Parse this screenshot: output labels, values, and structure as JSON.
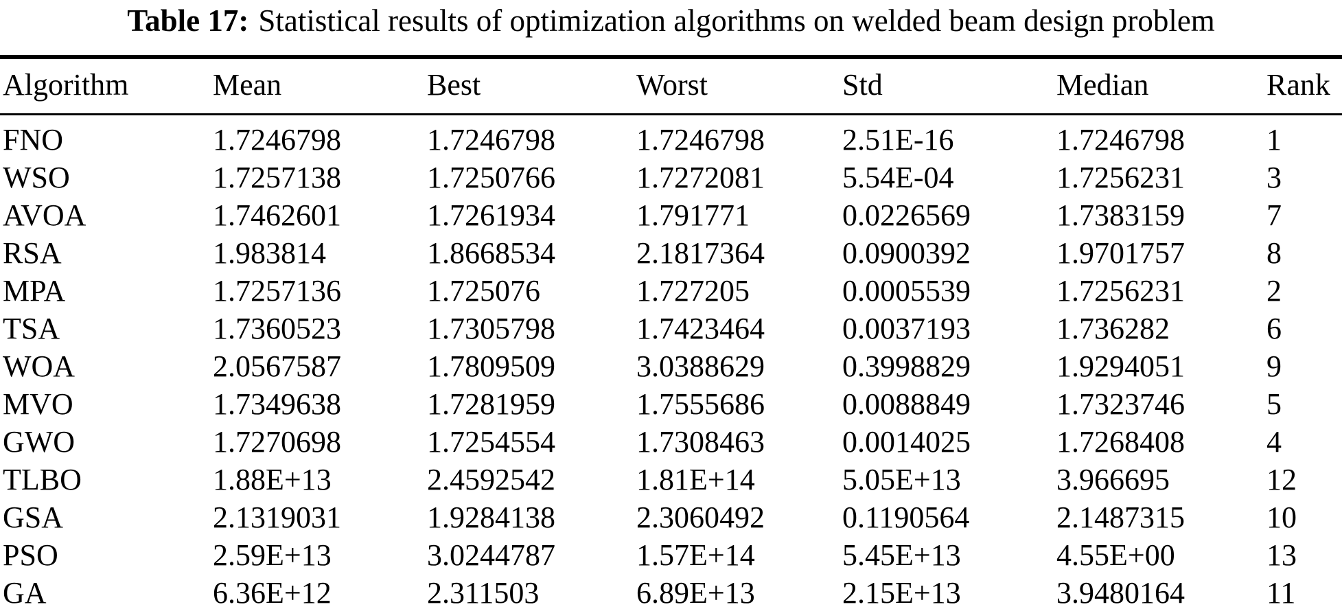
{
  "title": {
    "label": "Table 17:",
    "text": "Statistical results of optimization algorithms on welded beam design problem"
  },
  "table": {
    "columns": [
      {
        "key": "algorithm",
        "label": "Algorithm"
      },
      {
        "key": "mean",
        "label": "Mean"
      },
      {
        "key": "best",
        "label": "Best"
      },
      {
        "key": "worst",
        "label": "Worst"
      },
      {
        "key": "std",
        "label": "Std"
      },
      {
        "key": "median",
        "label": "Median"
      },
      {
        "key": "rank",
        "label": "Rank"
      }
    ],
    "rows": [
      {
        "algorithm": "FNO",
        "mean": "1.7246798",
        "best": "1.7246798",
        "worst": "1.7246798",
        "std": "2.51E-16",
        "median": "1.7246798",
        "rank": "1"
      },
      {
        "algorithm": "WSO",
        "mean": "1.7257138",
        "best": "1.7250766",
        "worst": "1.7272081",
        "std": "5.54E-04",
        "median": "1.7256231",
        "rank": "3"
      },
      {
        "algorithm": "AVOA",
        "mean": "1.7462601",
        "best": "1.7261934",
        "worst": "1.791771",
        "std": "0.0226569",
        "median": "1.7383159",
        "rank": "7"
      },
      {
        "algorithm": "RSA",
        "mean": "1.983814",
        "best": "1.8668534",
        "worst": "2.1817364",
        "std": "0.0900392",
        "median": "1.9701757",
        "rank": "8"
      },
      {
        "algorithm": "MPA",
        "mean": "1.7257136",
        "best": "1.725076",
        "worst": "1.727205",
        "std": "0.0005539",
        "median": "1.7256231",
        "rank": "2"
      },
      {
        "algorithm": "TSA",
        "mean": "1.7360523",
        "best": "1.7305798",
        "worst": "1.7423464",
        "std": "0.0037193",
        "median": "1.736282",
        "rank": "6"
      },
      {
        "algorithm": "WOA",
        "mean": "2.0567587",
        "best": "1.7809509",
        "worst": "3.0388629",
        "std": "0.3998829",
        "median": "1.9294051",
        "rank": "9"
      },
      {
        "algorithm": "MVO",
        "mean": "1.7349638",
        "best": "1.7281959",
        "worst": "1.7555686",
        "std": "0.0088849",
        "median": "1.7323746",
        "rank": "5"
      },
      {
        "algorithm": "GWO",
        "mean": "1.7270698",
        "best": "1.7254554",
        "worst": "1.7308463",
        "std": "0.0014025",
        "median": "1.7268408",
        "rank": "4"
      },
      {
        "algorithm": "TLBO",
        "mean": "1.88E+13",
        "best": "2.4592542",
        "worst": "1.81E+14",
        "std": "5.05E+13",
        "median": "3.966695",
        "rank": "12"
      },
      {
        "algorithm": "GSA",
        "mean": "2.1319031",
        "best": "1.9284138",
        "worst": "2.3060492",
        "std": "0.1190564",
        "median": "2.1487315",
        "rank": "10"
      },
      {
        "algorithm": "PSO",
        "mean": "2.59E+13",
        "best": "3.0244787",
        "worst": "1.57E+14",
        "std": "5.45E+13",
        "median": "4.55E+00",
        "rank": "13"
      },
      {
        "algorithm": "GA",
        "mean": "6.36E+12",
        "best": "2.311503",
        "worst": "6.89E+13",
        "std": "2.15E+13",
        "median": "3.9480164",
        "rank": "11"
      }
    ]
  }
}
